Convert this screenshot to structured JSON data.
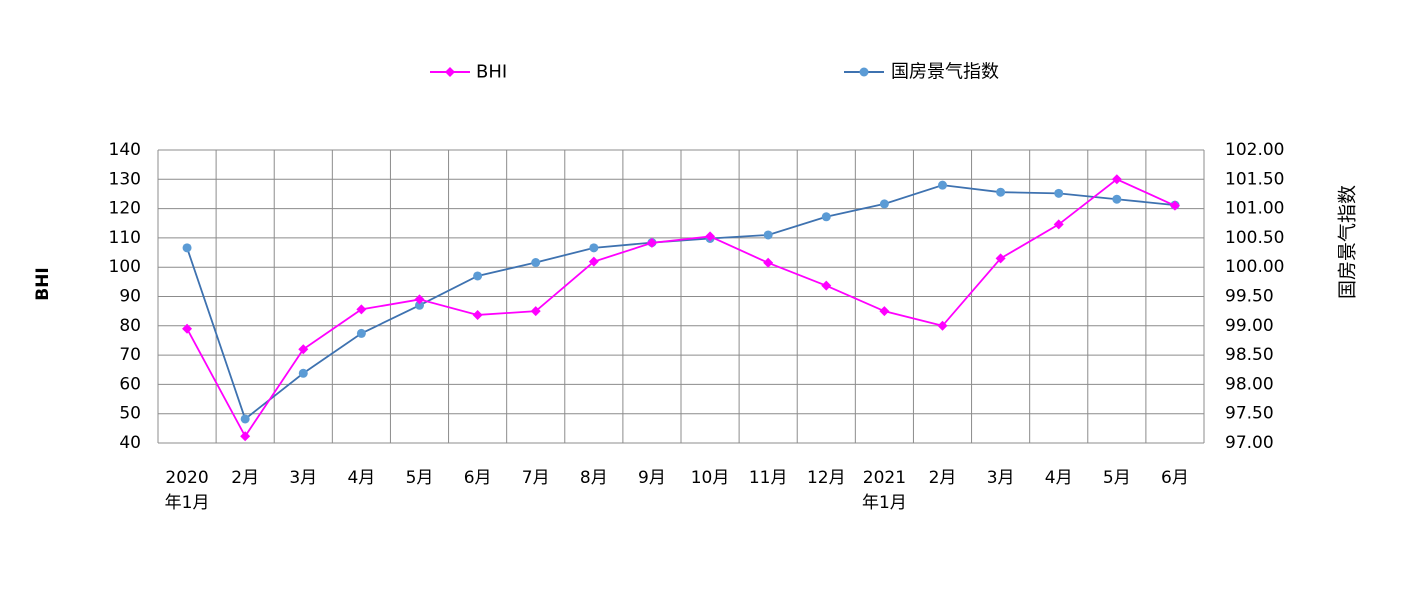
{
  "chart_data": {
    "type": "line",
    "categories": [
      {
        "line1": "2020",
        "line2": "年1月"
      },
      {
        "line1": "2月",
        "line2": ""
      },
      {
        "line1": "3月",
        "line2": ""
      },
      {
        "line1": "4月",
        "line2": ""
      },
      {
        "line1": "5月",
        "line2": ""
      },
      {
        "line1": "6月",
        "line2": ""
      },
      {
        "line1": "7月",
        "line2": ""
      },
      {
        "line1": "8月",
        "line2": ""
      },
      {
        "line1": "9月",
        "line2": ""
      },
      {
        "line1": "10月",
        "line2": ""
      },
      {
        "line1": "11月",
        "line2": ""
      },
      {
        "line1": "12月",
        "line2": ""
      },
      {
        "line1": "2021",
        "line2": "年1月"
      },
      {
        "line1": "2月",
        "line2": ""
      },
      {
        "line1": "3月",
        "line2": ""
      },
      {
        "line1": "4月",
        "line2": ""
      },
      {
        "line1": "5月",
        "line2": ""
      },
      {
        "line1": "6月",
        "line2": ""
      }
    ],
    "series": [
      {
        "name": "BHI",
        "axis": "left",
        "color": "#ff00ff",
        "marker": "diamond",
        "values": [
          79,
          42.3,
          72,
          85.6,
          89,
          83.7,
          85,
          101.9,
          108.3,
          110.5,
          101.5,
          93.7,
          85,
          80,
          103,
          114.6,
          130,
          121
        ]
      },
      {
        "name": "国房景气指数",
        "axis": "right",
        "color": "#3e72b0",
        "markerColor": "#5b9bd5",
        "marker": "circle",
        "values": [
          100.33,
          97.41,
          98.19,
          98.87,
          99.35,
          99.85,
          100.08,
          100.33,
          100.42,
          100.49,
          100.55,
          100.86,
          101.08,
          101.4,
          101.28,
          101.26,
          101.16,
          101.06
        ]
      }
    ],
    "yAxisLeft": {
      "label": "BHI",
      "ylim": [
        40,
        140
      ],
      "ticks": [
        "40",
        "50",
        "60",
        "70",
        "80",
        "90",
        "100",
        "110",
        "120",
        "130",
        "140"
      ]
    },
    "yAxisRight": {
      "label": "国房景气指数",
      "ylim": [
        97.0,
        102.0
      ],
      "ticks": [
        "97.00",
        "97.50",
        "98.00",
        "98.50",
        "99.00",
        "99.50",
        "100.00",
        "100.50",
        "101.00",
        "101.50",
        "102.00"
      ]
    },
    "grid": true,
    "legend": {
      "position": "top",
      "entries": [
        "BHI",
        "国房景气指数"
      ]
    }
  }
}
